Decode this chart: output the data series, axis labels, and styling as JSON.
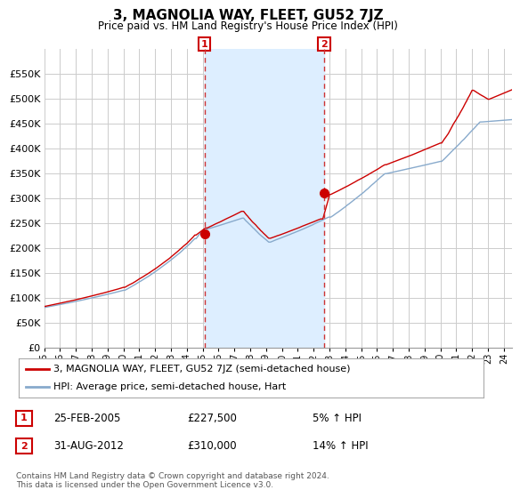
{
  "title": "3, MAGNOLIA WAY, FLEET, GU52 7JZ",
  "subtitle": "Price paid vs. HM Land Registry's House Price Index (HPI)",
  "legend_line1": "3, MAGNOLIA WAY, FLEET, GU52 7JZ (semi-detached house)",
  "legend_line2": "HPI: Average price, semi-detached house, Hart",
  "annotation1_date": "25-FEB-2005",
  "annotation1_price": "£227,500",
  "annotation1_hpi": "5% ↑ HPI",
  "annotation2_date": "31-AUG-2012",
  "annotation2_price": "£310,000",
  "annotation2_hpi": "14% ↑ HPI",
  "footer": "Contains HM Land Registry data © Crown copyright and database right 2024.\nThis data is licensed under the Open Government Licence v3.0.",
  "ylim": [
    0,
    600000
  ],
  "yticks": [
    0,
    50000,
    100000,
    150000,
    200000,
    250000,
    300000,
    350000,
    400000,
    450000,
    500000,
    550000
  ],
  "line_color_red": "#cc0000",
  "line_color_blue": "#88aacc",
  "vline_color": "#cc3333",
  "shade_color": "#ddeeff",
  "annotation_box_color": "#cc0000",
  "background_color": "#ffffff",
  "grid_color": "#cccccc",
  "sale1_year": 2005.12,
  "sale1_price": 227500,
  "sale2_year": 2012.66,
  "sale2_price": 310000,
  "xmin": 1995,
  "xmax": 2024.5,
  "xtick_years": [
    1995,
    1996,
    1997,
    1998,
    1999,
    2000,
    2001,
    2002,
    2003,
    2004,
    2005,
    2006,
    2007,
    2008,
    2009,
    2010,
    2011,
    2012,
    2013,
    2014,
    2015,
    2016,
    2017,
    2018,
    2019,
    2020,
    2021,
    2022,
    2023,
    2024
  ]
}
